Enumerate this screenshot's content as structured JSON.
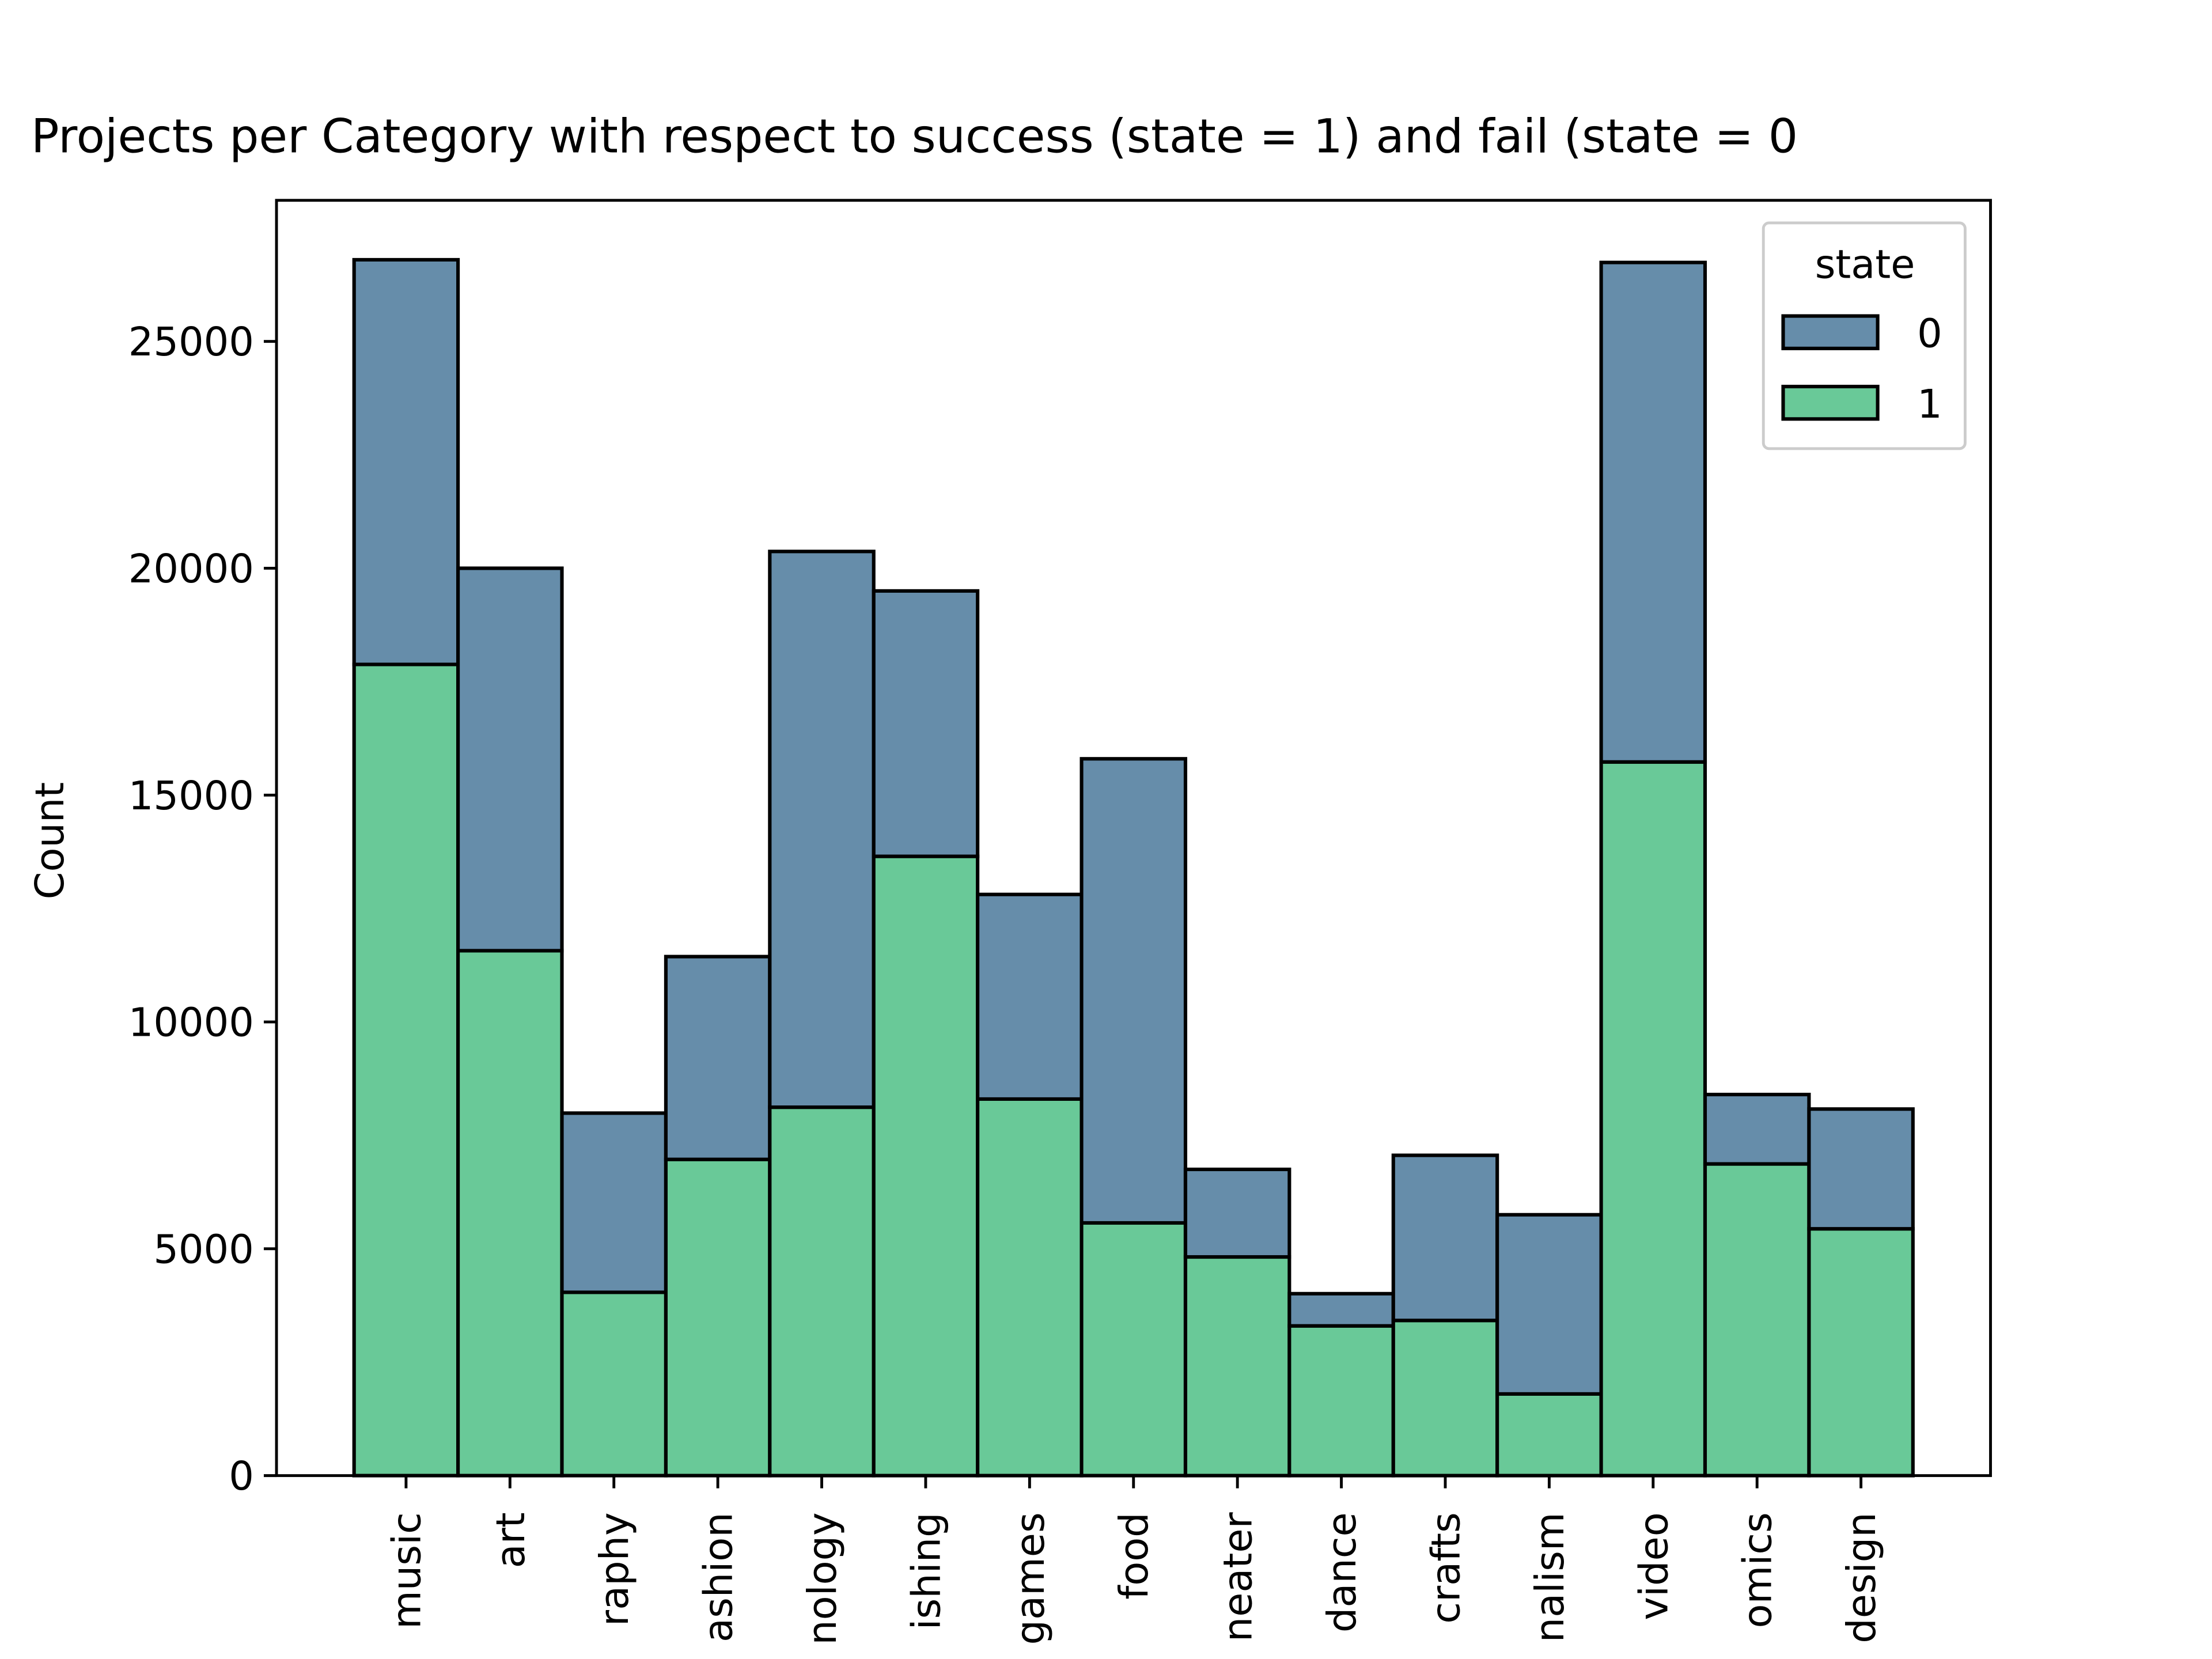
{
  "chart_data": {
    "type": "stacked_bar",
    "title": "Projects per Category with respect to success (state = 1) and fail (state = 0",
    "y_label": "Count",
    "legend_title": "state",
    "legend_position": "upper right",
    "categories": [
      "music",
      "art",
      "raphy",
      "ashion",
      "nology",
      "ishing",
      "games",
      "food",
      "neater",
      "dance",
      "crafts",
      "nalism",
      "video",
      "omics",
      "design"
    ],
    "series": [
      {
        "name": "0",
        "color": "#668daa",
        "values": [
          8920,
          8430,
          3950,
          4470,
          12250,
          5850,
          4510,
          10230,
          1930,
          710,
          3640,
          3950,
          11010,
          1530,
          2640
        ]
      },
      {
        "name": "1",
        "color": "#69c998",
        "values": [
          17880,
          11570,
          4040,
          6970,
          8120,
          13650,
          8300,
          5570,
          4820,
          3300,
          3420,
          1800,
          15730,
          6870,
          5440
        ]
      }
    ],
    "ylim": [
      0,
      28110
    ],
    "yticks": [
      0,
      5000,
      10000,
      15000,
      20000,
      25000
    ]
  }
}
